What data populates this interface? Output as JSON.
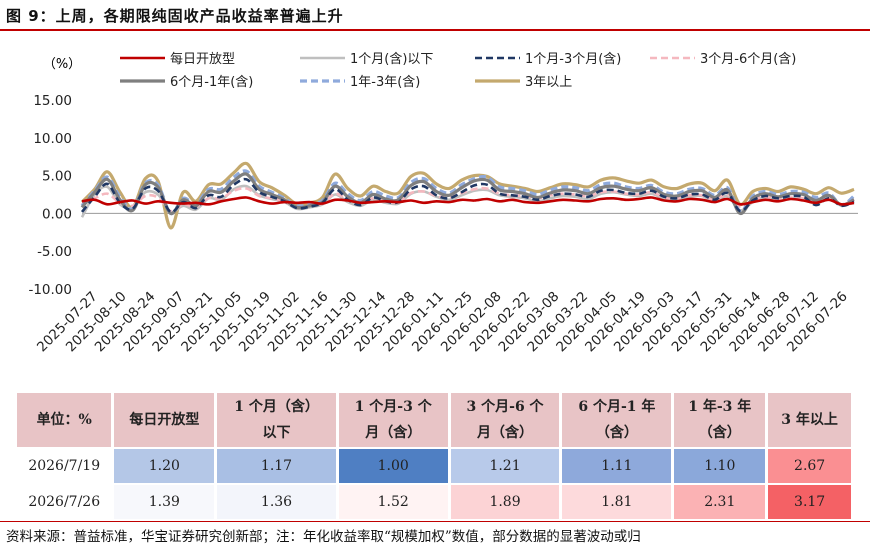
{
  "figure": {
    "title": "图 9：上周，各期限纯固收产品收益率普遍上升",
    "source": "资料来源：普益标准，华宝证券研究创新部；注：年化收益率取“规模加权”数值，部分数据的显著波动或归"
  },
  "chart_data": {
    "type": "line",
    "ylabel": "（%）",
    "ylim": [
      -10,
      15
    ],
    "yticks": [
      "15.00",
      "10.00",
      "5.00",
      "0.00",
      "-5.00",
      "-10.00"
    ],
    "ytick_values": [
      15,
      10,
      5,
      0,
      -5,
      -10
    ],
    "xtick_labels": [
      "2025-07-27",
      "2025-08-10",
      "2025-08-24",
      "2025-09-07",
      "2025-09-21",
      "2025-10-05",
      "2025-10-19",
      "2025-11-02",
      "2025-11-16",
      "2025-11-30",
      "2025-12-14",
      "2025-12-28",
      "2026-01-11",
      "2026-01-25",
      "2026-02-08",
      "2026-02-22",
      "2026-03-08",
      "2026-03-22",
      "2026-04-05",
      "2026-04-19",
      "2026-05-03",
      "2026-05-17",
      "2026-05-31",
      "2026-06-14",
      "2026-06-28",
      "2026-07-12",
      "2026-07-26"
    ],
    "grid": false,
    "legend_position": "top",
    "series": [
      {
        "name": "每日开放型",
        "color": "#c00000",
        "style": "solid",
        "width": 2.6,
        "values": [
          1.6,
          1.8,
          1.2,
          1.5,
          1.7,
          1.3,
          1.6,
          1.4,
          1.3,
          1.4,
          1.2,
          1.6,
          1.9,
          2.1,
          1.6,
          1.3,
          1.5,
          1.4,
          1.5,
          1.3,
          1.8,
          1.7,
          1.4,
          1.5,
          1.6,
          1.5,
          1.7,
          1.4,
          1.6,
          1.5,
          1.8,
          1.7,
          1.9,
          1.6,
          1.8,
          1.5,
          1.4,
          1.6,
          1.8,
          1.7,
          1.6,
          1.9,
          2.0,
          1.8,
          1.9,
          2.1,
          1.7,
          1.6,
          1.9,
          1.8,
          1.5,
          1.9,
          1.2,
          1.5,
          1.8,
          1.6,
          1.9,
          1.7,
          1.4,
          1.8,
          1.2,
          1.39
        ]
      },
      {
        "name": "1个月(含)以下",
        "color": "#bfbfbf",
        "style": "solid",
        "width": 2.6,
        "values": [
          -0.5,
          2.5,
          3.5,
          1.2,
          0.8,
          2.8,
          2.5,
          0.2,
          1.0,
          0.5,
          2.0,
          1.8,
          3.2,
          3.6,
          2.4,
          1.9,
          1.5,
          0.6,
          0.8,
          1.2,
          2.5,
          1.5,
          1.0,
          1.8,
          1.4,
          1.3,
          2.6,
          2.9,
          2.2,
          1.8,
          2.4,
          3.0,
          3.1,
          2.4,
          2.2,
          2.0,
          1.6,
          2.0,
          2.3,
          2.2,
          1.9,
          2.6,
          2.8,
          2.5,
          2.3,
          2.6,
          1.9,
          1.8,
          2.2,
          2.3,
          1.5,
          2.3,
          0.4,
          1.5,
          2.1,
          1.7,
          2.0,
          1.8,
          1.3,
          1.9,
          1.17,
          1.36
        ]
      },
      {
        "name": "1个月-3个月(含)",
        "color": "#203864",
        "style": "dash",
        "width": 2.6,
        "values": [
          0.2,
          2.2,
          3.9,
          1.4,
          0.6,
          3.3,
          3.0,
          0.2,
          1.5,
          0.7,
          2.4,
          2.2,
          3.8,
          4.5,
          2.8,
          2.2,
          1.6,
          0.7,
          0.9,
          1.4,
          3.2,
          1.8,
          1.1,
          2.1,
          1.6,
          1.5,
          3.2,
          3.6,
          2.4,
          2.0,
          2.8,
          3.7,
          3.8,
          2.6,
          2.4,
          2.2,
          1.8,
          2.3,
          2.6,
          2.5,
          2.2,
          3.0,
          3.1,
          2.7,
          2.6,
          3.0,
          2.2,
          2.0,
          2.5,
          2.5,
          1.8,
          2.7,
          0.3,
          1.7,
          2.3,
          2.0,
          2.3,
          2.2,
          1.1,
          2.0,
          1.0,
          1.52
        ]
      },
      {
        "name": "3个月-6个月(含)",
        "color": "#f5b8bf",
        "style": "dash",
        "width": 2.6,
        "values": [
          1.2,
          2.0,
          2.6,
          1.4,
          1.0,
          2.3,
          2.1,
          0.3,
          1.2,
          0.9,
          2.0,
          2.0,
          3.0,
          3.3,
          2.3,
          2.0,
          1.6,
          0.9,
          1.1,
          1.3,
          2.6,
          1.8,
          1.4,
          2.0,
          1.6,
          1.5,
          2.7,
          2.9,
          2.3,
          2.1,
          2.7,
          3.2,
          3.3,
          2.6,
          2.4,
          2.3,
          2.0,
          2.4,
          2.6,
          2.5,
          2.3,
          2.8,
          2.9,
          2.6,
          2.5,
          2.8,
          2.1,
          2.0,
          2.4,
          2.4,
          1.8,
          2.5,
          0.9,
          1.8,
          2.2,
          1.9,
          2.1,
          2.0,
          1.5,
          2.1,
          1.21,
          1.89
        ]
      },
      {
        "name": "6个月-1年(含)",
        "color": "#7f7f7f",
        "style": "solid",
        "width": 3.2,
        "values": [
          0.8,
          2.8,
          4.5,
          1.8,
          0.4,
          3.8,
          3.5,
          0.0,
          1.8,
          1.0,
          2.9,
          2.8,
          4.3,
          5.2,
          3.2,
          2.5,
          1.8,
          0.8,
          1.0,
          1.5,
          3.6,
          2.2,
          1.4,
          2.5,
          1.9,
          1.8,
          3.7,
          4.2,
          2.9,
          2.4,
          3.4,
          4.3,
          4.4,
          3.1,
          2.9,
          2.6,
          2.1,
          2.7,
          3.1,
          3.0,
          2.6,
          3.4,
          3.6,
          3.2,
          3.0,
          3.4,
          2.5,
          2.3,
          2.9,
          3.0,
          2.1,
          3.1,
          0.0,
          2.0,
          2.6,
          2.2,
          2.6,
          2.5,
          1.7,
          2.4,
          1.11,
          1.81
        ]
      },
      {
        "name": "1年-3年(含)",
        "color": "#8faadc",
        "style": "dash",
        "width": 3.2,
        "values": [
          1.0,
          3.0,
          4.8,
          2.2,
          0.6,
          4.0,
          3.8,
          0.0,
          2.0,
          1.2,
          3.2,
          3.2,
          4.8,
          5.6,
          3.6,
          2.8,
          2.0,
          1.0,
          1.2,
          1.7,
          4.0,
          2.6,
          1.7,
          2.9,
          2.3,
          2.1,
          4.1,
          4.6,
          3.3,
          2.7,
          3.8,
          4.6,
          4.8,
          3.5,
          3.3,
          3.0,
          2.5,
          3.1,
          3.5,
          3.4,
          3.0,
          3.8,
          4.0,
          3.5,
          3.3,
          3.7,
          2.8,
          2.6,
          3.2,
          3.3,
          2.4,
          3.4,
          0.3,
          2.3,
          2.9,
          2.5,
          2.9,
          2.8,
          2.1,
          2.7,
          1.1,
          2.31
        ]
      },
      {
        "name": "3年以上",
        "color": "#c4a96e",
        "style": "solid",
        "width": 3.2,
        "values": [
          1.5,
          3.2,
          5.5,
          2.8,
          0.8,
          4.6,
          4.3,
          -1.9,
          2.8,
          1.6,
          3.8,
          3.9,
          5.4,
          6.6,
          4.2,
          3.4,
          2.4,
          1.2,
          1.4,
          2.1,
          5.2,
          3.3,
          2.3,
          3.6,
          2.9,
          2.7,
          4.9,
          5.3,
          3.9,
          3.3,
          4.4,
          5.0,
          4.9,
          3.9,
          3.6,
          3.3,
          2.9,
          3.4,
          3.9,
          3.8,
          3.5,
          4.4,
          4.7,
          4.3,
          4.0,
          4.4,
          3.5,
          3.3,
          3.9,
          4.0,
          3.0,
          4.4,
          1.2,
          2.9,
          3.3,
          2.9,
          3.5,
          3.2,
          2.6,
          3.4,
          2.67,
          3.17
        ]
      }
    ]
  },
  "table": {
    "headers": [
      {
        "l1": "单位：%",
        "l2": ""
      },
      {
        "l1": "每日开放型",
        "l2": ""
      },
      {
        "l1": "1 个月（含）",
        "l2": "以下"
      },
      {
        "l1": "1 个月-3 个",
        "l2": "月（含）"
      },
      {
        "l1": "3 个月-6 个",
        "l2": "月（含）"
      },
      {
        "l1": "6 个月-1 年",
        "l2": "（含）"
      },
      {
        "l1": "1 年-3 年",
        "l2": "（含）"
      },
      {
        "l1": "3 年以上",
        "l2": ""
      }
    ],
    "rows": [
      {
        "label": "2026/7/19",
        "cells": [
          {
            "v": "1.20",
            "bg": "#b4c7e7"
          },
          {
            "v": "1.17",
            "bg": "#a9bfe4"
          },
          {
            "v": "1.00",
            "bg": "#4f7fc3"
          },
          {
            "v": "1.21",
            "bg": "#b8caea"
          },
          {
            "v": "1.11",
            "bg": "#8ea9db"
          },
          {
            "v": "1.10",
            "bg": "#8ba8da"
          },
          {
            "v": "2.67",
            "bg": "#fa8f92"
          }
        ]
      },
      {
        "label": "2026/7/26",
        "cells": [
          {
            "v": "1.39",
            "bg": "#f7f8fc"
          },
          {
            "v": "1.36",
            "bg": "#f3f5fb"
          },
          {
            "v": "1.52",
            "bg": "#fff3f3"
          },
          {
            "v": "1.89",
            "bg": "#fcd3d5"
          },
          {
            "v": "1.81",
            "bg": "#fddadc"
          },
          {
            "v": "2.31",
            "bg": "#fbb2b4"
          },
          {
            "v": "3.17",
            "bg": "#f46165"
          }
        ]
      }
    ]
  }
}
